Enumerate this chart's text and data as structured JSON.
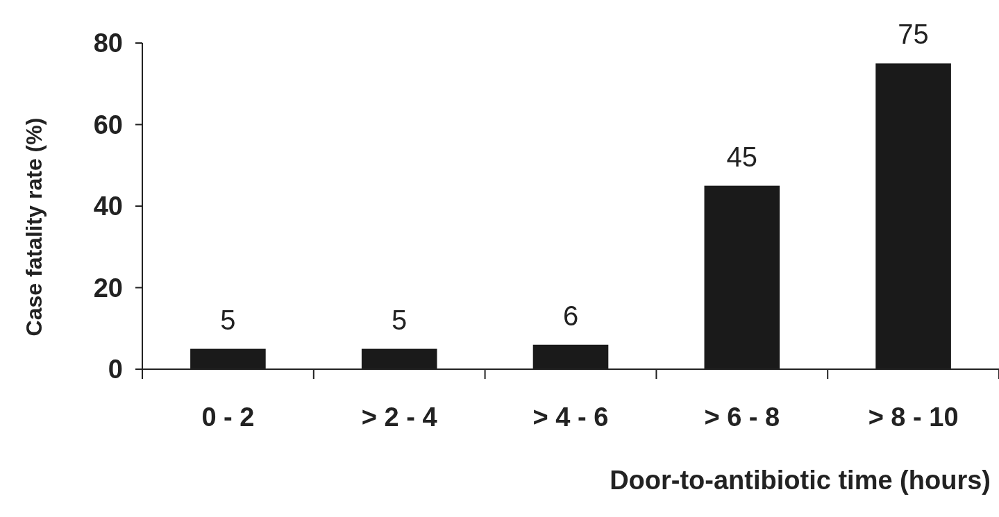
{
  "chart_data": {
    "type": "bar",
    "xlabel": "Door-to-antibiotic time (hours)",
    "ylabel": "Case fatality rate (%)",
    "categories": [
      "0 - 2",
      "> 2 - 4",
      "> 4 - 6",
      "> 6 - 8",
      "> 8 - 10"
    ],
    "values": [
      5,
      5,
      6,
      45,
      75
    ],
    "color": "#1a1a1a",
    "ylim": [
      0,
      80
    ],
    "yticks": [
      0,
      20,
      40,
      60,
      80
    ],
    "data_labels": true
  }
}
